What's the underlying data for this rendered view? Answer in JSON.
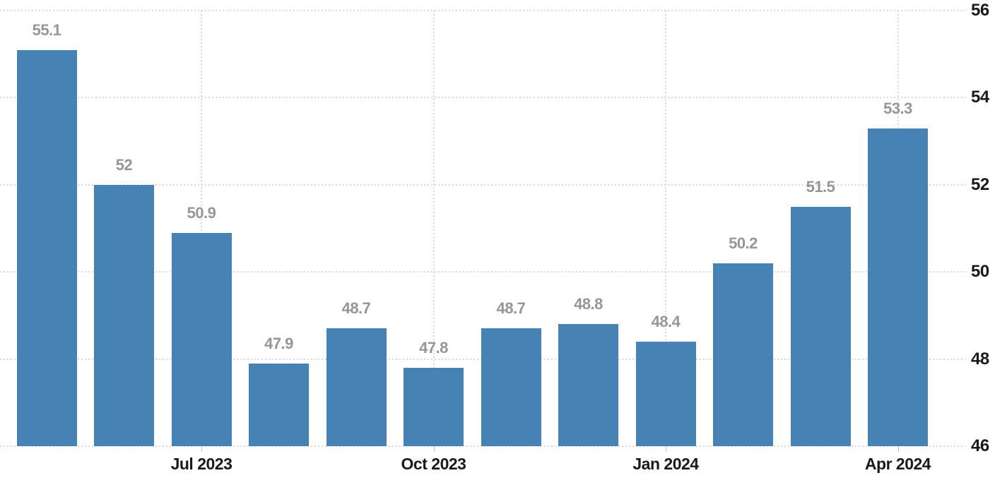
{
  "chart_data": {
    "type": "bar",
    "title": "",
    "values": [
      55.1,
      52,
      50.9,
      47.9,
      48.7,
      47.8,
      48.7,
      48.8,
      48.4,
      50.2,
      51.5,
      53.3
    ],
    "value_labels": [
      "55.1",
      "52",
      "50.9",
      "47.9",
      "48.7",
      "47.8",
      "48.7",
      "48.8",
      "48.4",
      "50.2",
      "51.5",
      "53.3"
    ],
    "x_ticks": [
      {
        "label": "Jul 2023",
        "bar_index": 2
      },
      {
        "label": "Oct 2023",
        "bar_index": 5
      },
      {
        "label": "Jan 2024",
        "bar_index": 8
      },
      {
        "label": "Apr 2024",
        "bar_index": 11
      }
    ],
    "y_ticks": [
      56,
      54,
      52,
      50,
      48,
      46
    ],
    "ylim": [
      46,
      56
    ],
    "y_axis_side": "right",
    "grid": "dotted",
    "legend": "none",
    "colors": {
      "bar": "#4682b4",
      "value_label": "#969696",
      "axis_label": "#1a1a1a",
      "gridline": "#d9d9d9",
      "tick_mark": "#c0c0c0",
      "background": "#ffffff"
    }
  }
}
